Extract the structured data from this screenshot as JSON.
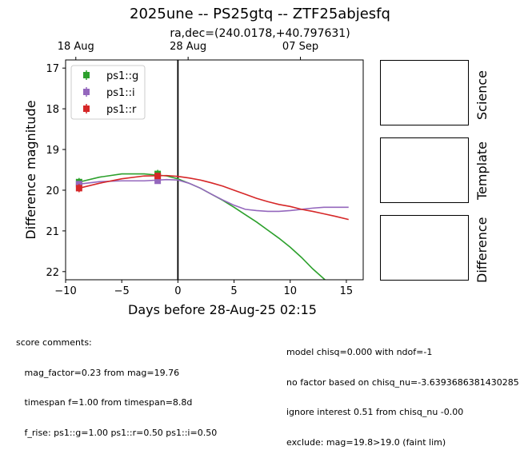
{
  "title": "2025une -- PS25gtq -- ZTF25abjesfq",
  "subtitle": "ra,dec=(240.0178,+40.797631)",
  "chart_data": {
    "type": "scatter",
    "xlabel": "Days before 28-Aug-25 02:15",
    "ylabel": "Difference magnitude",
    "xlim": [
      -10,
      16.5
    ],
    "ylim": [
      22.2,
      16.8
    ],
    "y_inverted": true,
    "xticks": [
      -10,
      -5,
      0,
      5,
      10,
      15
    ],
    "yticks": [
      17,
      18,
      19,
      20,
      21,
      22
    ],
    "top_axis_ticks": [
      {
        "x": -9.09,
        "label": "18 Aug"
      },
      {
        "x": 0.91,
        "label": "28 Aug"
      },
      {
        "x": 10.91,
        "label": "07 Sep"
      }
    ],
    "vline_x": 0,
    "legend_position": "upper left",
    "series": [
      {
        "name": "ps1::g",
        "color": "#2ca02c",
        "points": [
          {
            "x": -8.8,
            "y": 19.8,
            "err": 0.1
          },
          {
            "x": -1.8,
            "y": 19.6,
            "err": 0.1
          }
        ],
        "curve": [
          [
            -8.8,
            19.8
          ],
          [
            -7,
            19.68
          ],
          [
            -5,
            19.6
          ],
          [
            -3,
            19.6
          ],
          [
            -1,
            19.65
          ],
          [
            0,
            19.72
          ],
          [
            1,
            19.83
          ],
          [
            2,
            19.95
          ],
          [
            3,
            20.1
          ],
          [
            4,
            20.25
          ],
          [
            5,
            20.42
          ],
          [
            6,
            20.6
          ],
          [
            7,
            20.78
          ],
          [
            8,
            20.98
          ],
          [
            9,
            21.18
          ],
          [
            10,
            21.4
          ],
          [
            11,
            21.65
          ],
          [
            12,
            21.93
          ],
          [
            13.3,
            22.25
          ]
        ]
      },
      {
        "name": "ps1::i",
        "color": "#9467bd",
        "points": [
          {
            "x": -8.8,
            "y": 19.85,
            "err": 0.05
          },
          {
            "x": -1.8,
            "y": 19.77,
            "err": 0.05
          }
        ],
        "curve": [
          [
            -8.8,
            19.85
          ],
          [
            -7,
            19.79
          ],
          [
            -5,
            19.77
          ],
          [
            -3,
            19.77
          ],
          [
            -1,
            19.74
          ],
          [
            0,
            19.75
          ],
          [
            1,
            19.83
          ],
          [
            2,
            19.95
          ],
          [
            3,
            20.1
          ],
          [
            4,
            20.24
          ],
          [
            5,
            20.37
          ],
          [
            6,
            20.47
          ],
          [
            7,
            20.5
          ],
          [
            8,
            20.52
          ],
          [
            9,
            20.52
          ],
          [
            10,
            20.5
          ],
          [
            11,
            20.47
          ],
          [
            12,
            20.44
          ],
          [
            13,
            20.42
          ],
          [
            15.2,
            20.42
          ]
        ]
      },
      {
        "name": "ps1::r",
        "color": "#d62728",
        "points": [
          {
            "x": -8.8,
            "y": 19.95,
            "err": 0.1
          },
          {
            "x": -1.8,
            "y": 19.65,
            "err": 0.05
          }
        ],
        "curve": [
          [
            -8.8,
            19.95
          ],
          [
            -7,
            19.83
          ],
          [
            -5,
            19.72
          ],
          [
            -3,
            19.65
          ],
          [
            -1,
            19.64
          ],
          [
            0,
            19.66
          ],
          [
            1,
            19.7
          ],
          [
            2,
            19.75
          ],
          [
            3,
            19.82
          ],
          [
            4,
            19.9
          ],
          [
            5,
            20.0
          ],
          [
            6,
            20.1
          ],
          [
            7,
            20.2
          ],
          [
            8,
            20.28
          ],
          [
            9,
            20.35
          ],
          [
            10,
            20.4
          ],
          [
            11,
            20.47
          ],
          [
            12,
            20.52
          ],
          [
            13,
            20.58
          ],
          [
            14,
            20.64
          ],
          [
            15.2,
            20.72
          ]
        ]
      }
    ]
  },
  "panels": {
    "science": "Science",
    "template": "Template",
    "difference": "Difference"
  },
  "comments_left": [
    "score comments:",
    "   mag_factor=0.23 from mag=19.76",
    "   timespan f=1.00 from timespan=8.8d",
    "   f_rise: ps1::g=1.00 ps1::r=0.50 ps1::i=0.50"
  ],
  "comments_right": [
    "model chisq=0.000 with ndof=-1",
    "no factor based on chisq_nu=-3.6393686381430285",
    "ignore interest 0.51 from chisq_nu -0.00",
    "exclude: mag=19.8>19.0 (faint lim)"
  ]
}
